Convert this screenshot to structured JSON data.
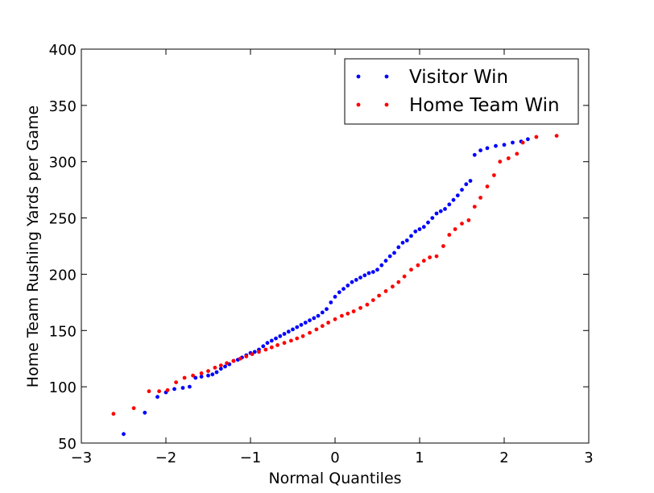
{
  "chart_data": {
    "type": "scatter",
    "title": "",
    "xlabel": "Normal Quantiles",
    "ylabel": "Home Team Rushing Yards per Game",
    "xlim": [
      -3,
      3
    ],
    "ylim": [
      50,
      400
    ],
    "xticks": [
      -3,
      -2,
      -1,
      0,
      1,
      2,
      3
    ],
    "xtick_labels": [
      "−3",
      "−2",
      "−1",
      "0",
      "1",
      "2",
      "3"
    ],
    "yticks": [
      50,
      100,
      150,
      200,
      250,
      300,
      350,
      400
    ],
    "ytick_labels": [
      "50",
      "100",
      "150",
      "200",
      "250",
      "300",
      "350",
      "400"
    ],
    "grid": false,
    "legend_position": "top-right",
    "series": [
      {
        "name": "Visitor Win",
        "color": "#0000ff",
        "x": [
          -2.5,
          -2.25,
          -2.1,
          -2.0,
          -1.9,
          -1.8,
          -1.72,
          -1.65,
          -1.58,
          -1.5,
          -1.45,
          -1.4,
          -1.35,
          -1.3,
          -1.25,
          -1.2,
          -1.15,
          -1.1,
          -1.05,
          -1.0,
          -0.95,
          -0.9,
          -0.85,
          -0.8,
          -0.75,
          -0.7,
          -0.65,
          -0.6,
          -0.55,
          -0.5,
          -0.45,
          -0.4,
          -0.35,
          -0.3,
          -0.25,
          -0.2,
          -0.15,
          -0.1,
          -0.05,
          0.0,
          0.05,
          0.1,
          0.15,
          0.2,
          0.25,
          0.3,
          0.35,
          0.4,
          0.45,
          0.5,
          0.55,
          0.6,
          0.65,
          0.7,
          0.75,
          0.8,
          0.85,
          0.9,
          0.95,
          1.0,
          1.05,
          1.1,
          1.15,
          1.2,
          1.25,
          1.3,
          1.35,
          1.4,
          1.45,
          1.5,
          1.55,
          1.6,
          1.65,
          1.72,
          1.8,
          1.9,
          2.0,
          2.1,
          2.2,
          2.28
        ],
        "y": [
          58,
          77,
          91,
          95,
          98,
          99,
          100,
          108,
          109,
          110,
          111,
          113,
          116,
          118,
          120,
          123,
          124,
          126,
          128,
          130,
          131,
          133,
          136,
          139,
          141,
          143,
          145,
          147,
          149,
          151,
          153,
          155,
          157,
          159,
          161,
          163,
          166,
          169,
          175,
          180,
          184,
          187,
          190,
          193,
          195,
          197,
          199,
          201,
          202,
          204,
          208,
          212,
          216,
          219,
          224,
          228,
          230,
          234,
          238,
          240,
          242,
          246,
          250,
          254,
          256,
          258,
          262,
          266,
          270,
          275,
          280,
          283,
          306,
          310,
          312,
          314,
          315,
          317,
          318,
          320
        ]
      },
      {
        "name": "Home Team Win",
        "color": "#ff0000",
        "x": [
          -2.62,
          -2.38,
          -2.2,
          -2.08,
          -1.98,
          -1.88,
          -1.78,
          -1.68,
          -1.58,
          -1.5,
          -1.42,
          -1.35,
          -1.28,
          -1.2,
          -1.12,
          -1.05,
          -0.98,
          -0.9,
          -0.82,
          -0.75,
          -0.68,
          -0.6,
          -0.52,
          -0.45,
          -0.38,
          -0.3,
          -0.22,
          -0.15,
          -0.08,
          0.0,
          0.08,
          0.15,
          0.22,
          0.3,
          0.38,
          0.45,
          0.52,
          0.6,
          0.68,
          0.75,
          0.82,
          0.9,
          0.98,
          1.05,
          1.12,
          1.2,
          1.28,
          1.35,
          1.42,
          1.5,
          1.58,
          1.65,
          1.72,
          1.8,
          1.88,
          1.95,
          2.05,
          2.15,
          2.22,
          2.38,
          2.62
        ],
        "y": [
          76,
          81,
          96,
          96,
          97,
          104,
          108,
          110,
          112,
          114,
          117,
          119,
          121,
          123,
          125,
          127,
          129,
          131,
          133,
          135,
          137,
          139,
          141,
          143,
          145,
          148,
          151,
          154,
          157,
          160,
          163,
          165,
          167,
          170,
          173,
          177,
          181,
          185,
          189,
          193,
          198,
          204,
          208,
          212,
          215,
          216,
          225,
          235,
          240,
          245,
          248,
          260,
          268,
          278,
          288,
          300,
          303,
          307,
          317,
          322,
          323
        ]
      }
    ]
  }
}
